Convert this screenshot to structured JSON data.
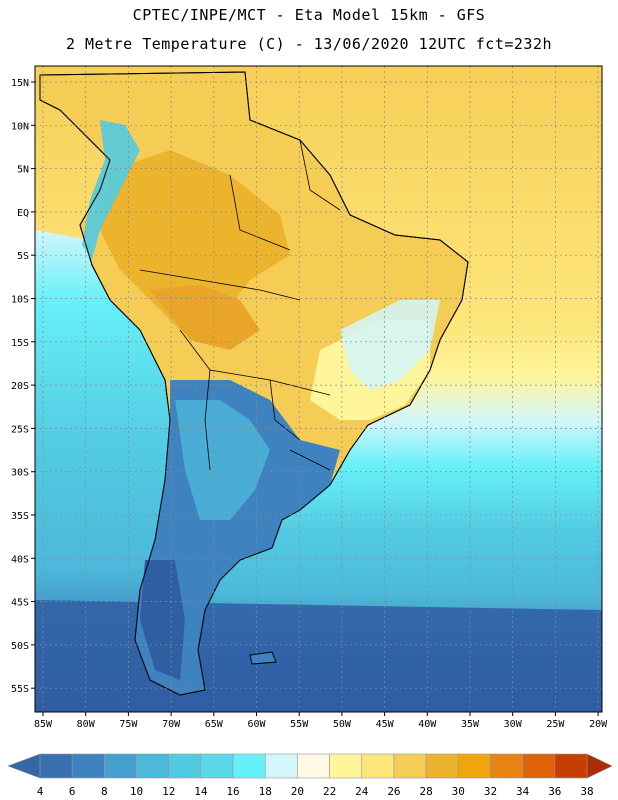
{
  "title_line1": "CPTEC/INPE/MCT -  Eta Model 15km - GFS",
  "title_line2": "2 Metre Temperature (C) - 13/06/2020 12UTC fct=232h",
  "lat_labels": [
    "15N",
    "10N",
    "5N",
    "EQ",
    "5S",
    "10S",
    "15S",
    "20S",
    "25S",
    "30S",
    "35S",
    "40S",
    "45S",
    "50S",
    "55S"
  ],
  "lon_labels": [
    "85W",
    "80W",
    "75W",
    "70W",
    "65W",
    "60W",
    "55W",
    "50W",
    "45W",
    "40W",
    "35W",
    "30W",
    "25W",
    "20W"
  ],
  "colorbar": {
    "labels": [
      "4",
      "6",
      "8",
      "10",
      "12",
      "14",
      "16",
      "18",
      "20",
      "22",
      "24",
      "26",
      "28",
      "30",
      "32",
      "34",
      "36",
      "38"
    ],
    "colors": [
      "#3a6fb0",
      "#3f82c0",
      "#45a0cf",
      "#4cb8da",
      "#52cbe2",
      "#5ad9ea",
      "#66f0f8",
      "#d2f6fc",
      "#fff8e4",
      "#fff59a",
      "#fde67a",
      "#f5cd55",
      "#ecb42c",
      "#f1a60b",
      "#e98413",
      "#de6206",
      "#c73e00"
    ],
    "left_arrow_color": "#3566a6",
    "right_arrow_color": "#ac2d00"
  },
  "colors": {
    "ocean_cold": "#2f5ea3",
    "ocean_mid": "#52cbe2",
    "ocean_warm": "#fde67a",
    "land_hot": "#ecb42c",
    "land_warm": "#f5cd55",
    "andes_cold": "#5ad9ea",
    "patagonia": "#3f82c0",
    "coastline": "#000000",
    "grid": "#8a8a8a"
  }
}
